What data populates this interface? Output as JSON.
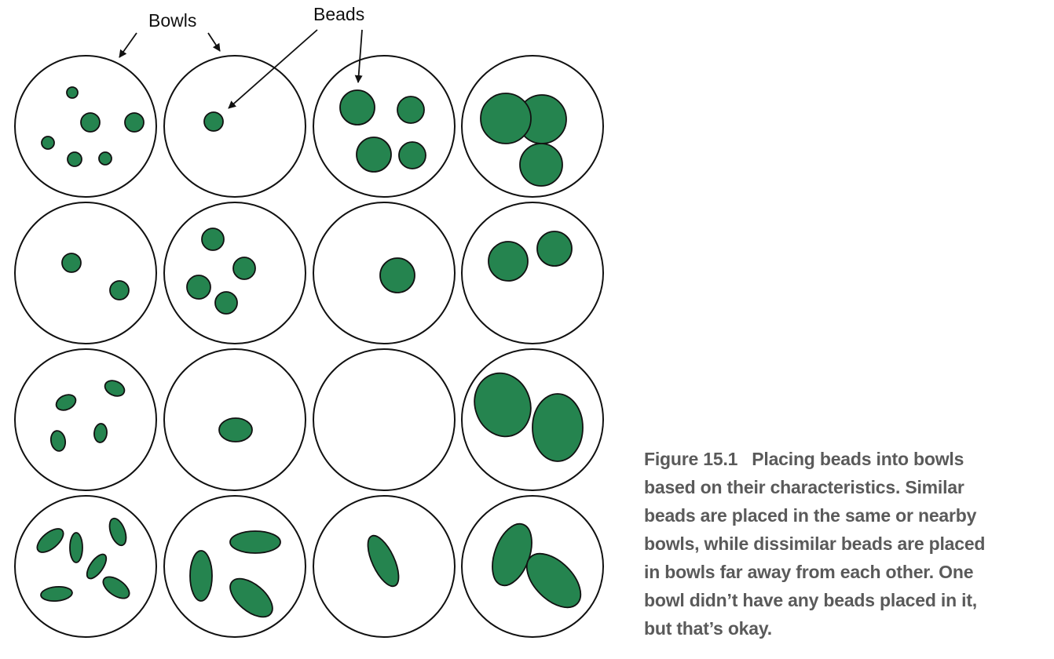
{
  "labels": {
    "bowls": "Bowls",
    "beads": "Beads"
  },
  "colors": {
    "bead_fill": "#25844f",
    "bowl_stroke": "#111111",
    "caption_text": "#5a5a5a"
  },
  "caption": {
    "figure_number": "Figure 15.1",
    "lines": [
      "Placing beads into bowls",
      "based on their characteristics. Similar",
      "beads are placed in the same or nearby",
      "bowls, while dissimilar beads are placed",
      "in bowls far away from each other. One",
      "bowl didn’t have any beads placed in it,",
      "but that’s okay."
    ]
  },
  "grid": {
    "rows": 4,
    "columns": 4,
    "bead_counts": [
      [
        6,
        1,
        4,
        3
      ],
      [
        2,
        4,
        1,
        2
      ],
      [
        4,
        1,
        0,
        2
      ],
      [
        6,
        3,
        1,
        2
      ]
    ]
  }
}
